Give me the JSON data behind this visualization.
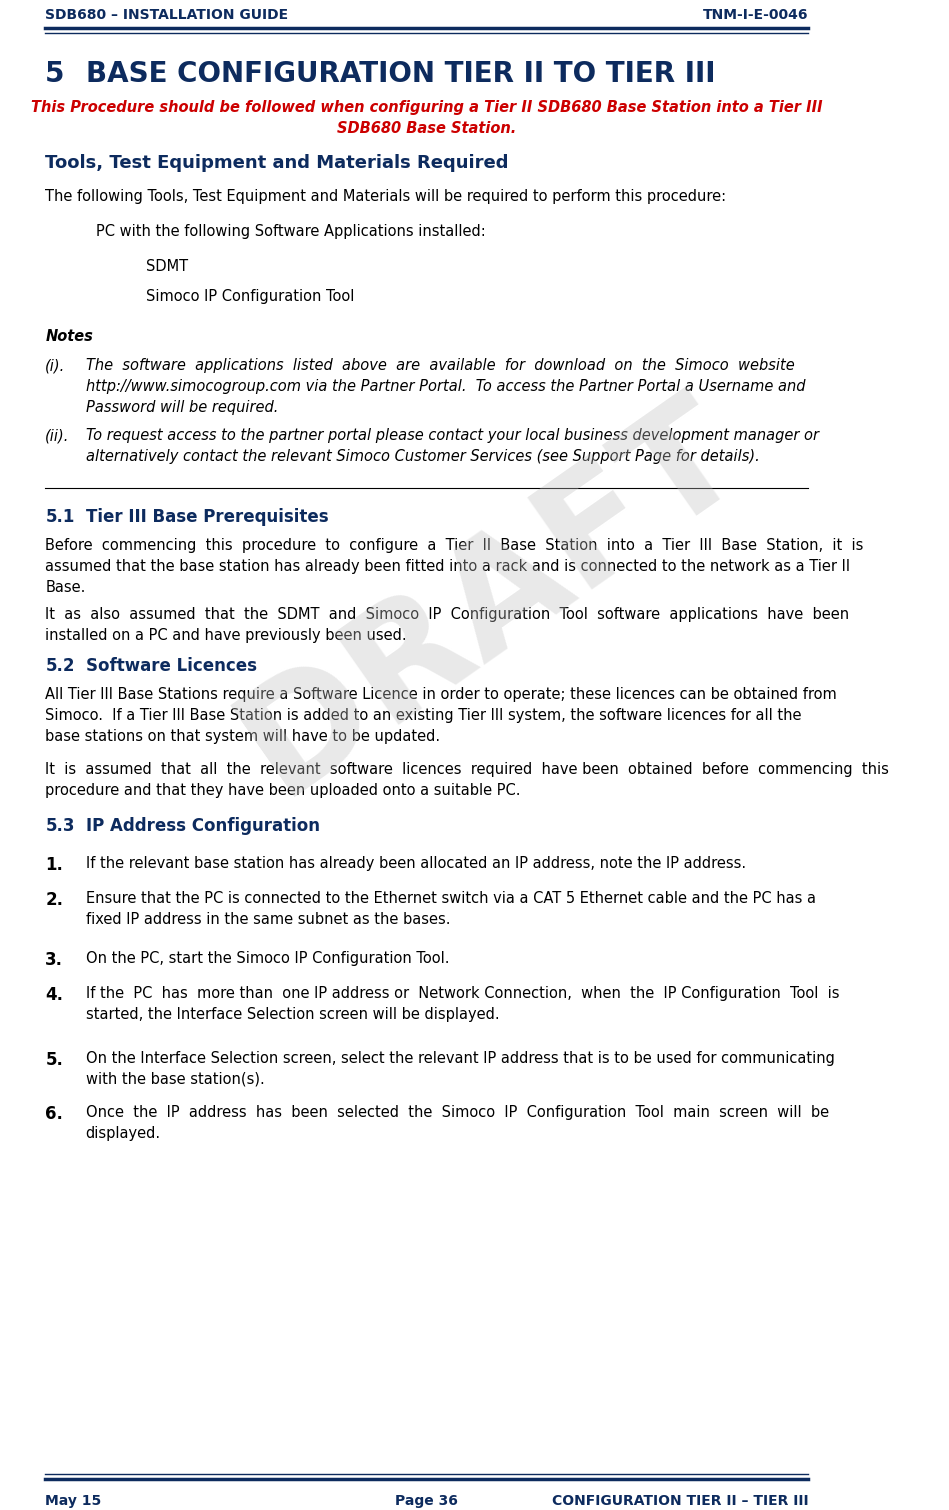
{
  "header_left": "SDB680 – INSTALLATION GUIDE",
  "header_right": "TNM-I-E-0046",
  "footer_left": "May 15",
  "footer_center": "Page 36",
  "footer_right": "CONFIGURATION TIER II – TIER III",
  "section_number": "5",
  "section_title": "BASE CONFIGURATION TIER II TO TIER III",
  "subtitle": "This Procedure should be followed when configuring a Tier II SDB680 Base Station into a Tier III\nSDB680 Base Station.",
  "tools_heading": "Tools, Test Equipment and Materials Required",
  "tools_intro": "The following Tools, Test Equipment and Materials will be required to perform this procedure:",
  "pc_line": "PC with the following Software Applications installed:",
  "sdmt": "SDMT",
  "simoco_tool": "Simoco IP Configuration Tool",
  "notes_label": "Notes",
  "note_i_label": "(i).",
  "note_i_text": "The  software  applications  listed  above  are  available  for  download  on  the  Simoco  website\nhttp://www.simocogroup.com via the Partner Portal.  To access the Partner Portal a Username and\nPassword will be required.",
  "note_ii_label": "(ii).",
  "note_ii_text": "To request access to the partner portal please contact your local business development manager or\nalternatively contact the relevant Simoco Customer Services (see Support Page for details).",
  "sec51_num": "5.1",
  "sec51_title": "Tier III Base Prerequisites",
  "sec51_p1": "Before  commencing  this  procedure  to  configure  a  Tier  II  Base  Station  into  a  Tier  III  Base  Station,  it  is\nassumed that the base station has already been fitted into a rack and is connected to the network as a Tier II\nBase.",
  "sec51_p2": "It  as  also  assumed  that  the  SDMT  and  Simoco  IP  Configuration  Tool  software  applications  have  been\ninstalled on a PC and have previously been used.",
  "sec52_num": "5.2",
  "sec52_title": "Software Licences",
  "sec52_p1": "All Tier III Base Stations require a Software Licence in order to operate; these licences can be obtained from\nSimoco.  If a Tier III Base Station is added to an existing Tier III system, the software licences for all the\nbase stations on that system will have to be updated.",
  "sec52_p2": "It  is  assumed  that  all  the  relevant  software  licences  required  have been  obtained  before  commencing  this\nprocedure and that they have been uploaded onto a suitable PC.",
  "sec53_num": "5.3",
  "sec53_title": "IP Address Configuration",
  "item1_num": "1.",
  "item1_text": "If the relevant base station has already been allocated an IP address, note the IP address.",
  "item2_num": "2.",
  "item2_text": "Ensure that the PC is connected to the Ethernet switch via a CAT 5 Ethernet cable and the PC has a\nfixed IP address in the same subnet as the bases.",
  "item3_num": "3.",
  "item3_text": "On the PC, start the Simoco IP Configuration Tool.",
  "item4_num": "4.",
  "item4_text": "If the  PC  has  more than  one IP address or  Network Connection,  when  the  IP Configuration  Tool  is\nstarted, the Interface Selection screen will be displayed.",
  "item5_num": "5.",
  "item5_text": "On the Interface Selection screen, select the relevant IP address that is to be used for communicating\nwith the base station(s).",
  "item6_num": "6.",
  "item6_text": "Once  the  IP  address  has  been  selected  the  Simoco  IP  Configuration  Tool  main  screen  will  be\ndisplayed.",
  "color_header_blue": "#1a3a6b",
  "color_red": "#cc0000",
  "color_section_blue": "#1a5276",
  "color_black": "#000000",
  "color_dark_navy": "#0d2b5e",
  "bg_color": "#ffffff",
  "watermark_color": "#c0c0c0"
}
